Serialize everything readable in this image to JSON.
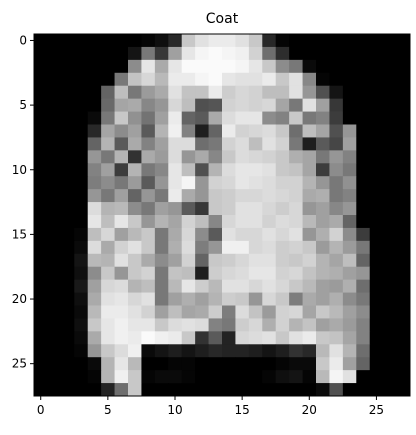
{
  "chart_data": {
    "type": "heatmap",
    "title": "Coat",
    "colormap": "gray",
    "value_range": [
      0,
      255
    ],
    "grid": false,
    "x_ticks": [
      0,
      5,
      10,
      15,
      20,
      25
    ],
    "y_ticks": [
      0,
      5,
      10,
      15,
      20,
      25
    ],
    "x_range": [
      -0.5,
      27.5
    ],
    "y_range": [
      27.5,
      -0.5
    ],
    "rows": 28,
    "cols": 28,
    "pixels": [
      [
        0,
        0,
        0,
        0,
        0,
        0,
        0,
        0,
        5,
        15,
        40,
        200,
        225,
        235,
        235,
        225,
        200,
        40,
        5,
        0,
        0,
        0,
        0,
        0,
        0,
        0,
        0,
        0
      ],
      [
        0,
        0,
        0,
        0,
        0,
        0,
        0,
        20,
        120,
        55,
        160,
        230,
        245,
        250,
        245,
        240,
        210,
        110,
        45,
        0,
        0,
        0,
        0,
        0,
        0,
        0,
        0,
        0
      ],
      [
        0,
        0,
        0,
        0,
        0,
        0,
        0,
        140,
        230,
        170,
        230,
        250,
        250,
        250,
        250,
        245,
        230,
        200,
        140,
        120,
        10,
        0,
        0,
        0,
        0,
        0,
        0,
        0
      ],
      [
        0,
        0,
        0,
        0,
        0,
        0,
        120,
        195,
        215,
        185,
        235,
        235,
        245,
        250,
        230,
        225,
        225,
        235,
        200,
        225,
        135,
        5,
        0,
        0,
        0,
        0,
        0,
        0
      ],
      [
        0,
        0,
        0,
        0,
        0,
        100,
        190,
        120,
        155,
        170,
        225,
        195,
        195,
        235,
        205,
        215,
        210,
        190,
        190,
        225,
        150,
        80,
        20,
        0,
        0,
        0,
        0,
        0
      ],
      [
        0,
        0,
        0,
        0,
        0,
        105,
        165,
        170,
        135,
        150,
        215,
        190,
        80,
        85,
        210,
        215,
        210,
        215,
        165,
        120,
        225,
        160,
        55,
        0,
        0,
        0,
        0,
        0
      ],
      [
        0,
        0,
        0,
        0,
        10,
        120,
        200,
        145,
        115,
        160,
        235,
        100,
        90,
        170,
        220,
        230,
        230,
        140,
        130,
        200,
        120,
        130,
        60,
        0,
        0,
        0,
        0,
        0
      ],
      [
        0,
        0,
        0,
        0,
        40,
        165,
        140,
        160,
        90,
        180,
        240,
        130,
        30,
        100,
        235,
        210,
        215,
        220,
        200,
        110,
        190,
        165,
        80,
        150,
        0,
        0,
        0,
        0
      ],
      [
        0,
        0,
        0,
        0,
        100,
        180,
        90,
        170,
        130,
        160,
        220,
        220,
        110,
        120,
        210,
        220,
        190,
        225,
        210,
        120,
        30,
        90,
        70,
        160,
        0,
        0,
        0,
        0
      ],
      [
        0,
        0,
        0,
        0,
        150,
        120,
        180,
        50,
        170,
        155,
        220,
        150,
        170,
        135,
        200,
        220,
        215,
        210,
        200,
        175,
        165,
        120,
        150,
        130,
        0,
        0,
        0,
        0
      ],
      [
        0,
        0,
        0,
        0,
        130,
        160,
        60,
        180,
        120,
        135,
        230,
        190,
        80,
        180,
        220,
        230,
        230,
        225,
        200,
        195,
        165,
        60,
        140,
        120,
        0,
        0,
        0,
        0
      ],
      [
        0,
        0,
        0,
        0,
        125,
        140,
        120,
        155,
        90,
        150,
        230,
        245,
        150,
        210,
        215,
        230,
        225,
        220,
        210,
        210,
        180,
        150,
        120,
        145,
        0,
        0,
        0,
        0
      ],
      [
        0,
        0,
        0,
        0,
        150,
        120,
        160,
        100,
        150,
        120,
        235,
        170,
        150,
        200,
        205,
        215,
        215,
        220,
        215,
        210,
        170,
        175,
        120,
        130,
        0,
        0,
        0,
        0
      ],
      [
        0,
        0,
        0,
        0,
        220,
        180,
        185,
        140,
        120,
        160,
        150,
        90,
        55,
        200,
        205,
        225,
        225,
        215,
        205,
        215,
        150,
        160,
        135,
        150,
        0,
        0,
        0,
        0
      ],
      [
        0,
        0,
        0,
        0,
        230,
        190,
        230,
        200,
        150,
        180,
        165,
        210,
        190,
        135,
        215,
        225,
        225,
        210,
        220,
        215,
        185,
        160,
        170,
        100,
        0,
        0,
        0,
        0
      ],
      [
        0,
        0,
        0,
        5,
        190,
        215,
        160,
        185,
        200,
        120,
        170,
        215,
        140,
        90,
        225,
        215,
        215,
        225,
        215,
        225,
        150,
        175,
        210,
        140,
        60,
        0,
        0,
        0
      ],
      [
        0,
        0,
        0,
        10,
        220,
        170,
        210,
        225,
        200,
        120,
        175,
        220,
        125,
        150,
        240,
        240,
        215,
        220,
        205,
        210,
        200,
        155,
        180,
        155,
        120,
        0,
        0,
        0
      ],
      [
        0,
        0,
        0,
        20,
        185,
        180,
        225,
        200,
        170,
        140,
        160,
        210,
        100,
        200,
        205,
        215,
        225,
        225,
        205,
        200,
        210,
        180,
        165,
        190,
        100,
        0,
        0,
        0
      ],
      [
        0,
        0,
        0,
        15,
        140,
        200,
        150,
        200,
        210,
        120,
        195,
        190,
        30,
        205,
        215,
        220,
        230,
        230,
        210,
        215,
        195,
        180,
        175,
        160,
        150,
        0,
        0,
        0
      ],
      [
        0,
        0,
        0,
        25,
        160,
        215,
        220,
        180,
        190,
        120,
        185,
        230,
        205,
        185,
        225,
        225,
        215,
        225,
        215,
        200,
        185,
        160,
        155,
        175,
        110,
        0,
        0,
        0
      ],
      [
        0,
        0,
        0,
        15,
        170,
        225,
        230,
        215,
        225,
        120,
        160,
        175,
        160,
        180,
        205,
        200,
        150,
        215,
        200,
        125,
        170,
        160,
        175,
        140,
        120,
        0,
        0,
        0
      ],
      [
        0,
        0,
        0,
        10,
        185,
        235,
        235,
        225,
        210,
        160,
        190,
        165,
        170,
        205,
        125,
        220,
        195,
        155,
        210,
        215,
        165,
        200,
        185,
        160,
        140,
        0,
        0,
        0
      ],
      [
        0,
        0,
        0,
        15,
        200,
        230,
        240,
        230,
        230,
        200,
        220,
        225,
        220,
        130,
        120,
        205,
        215,
        175,
        210,
        180,
        195,
        160,
        170,
        155,
        130,
        0,
        0,
        0
      ],
      [
        0,
        0,
        0,
        10,
        170,
        230,
        240,
        235,
        250,
        240,
        235,
        200,
        50,
        90,
        35,
        215,
        220,
        225,
        200,
        225,
        235,
        200,
        195,
        165,
        130,
        0,
        0,
        0
      ],
      [
        0,
        0,
        0,
        5,
        150,
        200,
        220,
        240,
        10,
        20,
        30,
        20,
        30,
        40,
        35,
        35,
        30,
        20,
        30,
        50,
        40,
        185,
        225,
        180,
        110,
        0,
        0,
        0
      ],
      [
        0,
        0,
        0,
        0,
        10,
        180,
        230,
        185,
        0,
        0,
        5,
        5,
        0,
        0,
        0,
        0,
        0,
        0,
        5,
        10,
        10,
        200,
        235,
        160,
        100,
        0,
        0,
        0
      ],
      [
        0,
        0,
        0,
        0,
        5,
        180,
        240,
        200,
        5,
        10,
        10,
        5,
        0,
        0,
        0,
        0,
        0,
        5,
        15,
        20,
        5,
        185,
        245,
        225,
        0,
        0,
        0,
        0
      ],
      [
        0,
        0,
        0,
        0,
        0,
        35,
        110,
        200,
        0,
        0,
        0,
        0,
        0,
        0,
        0,
        0,
        0,
        0,
        0,
        0,
        0,
        10,
        80,
        0,
        0,
        0,
        0,
        0
      ]
    ]
  }
}
